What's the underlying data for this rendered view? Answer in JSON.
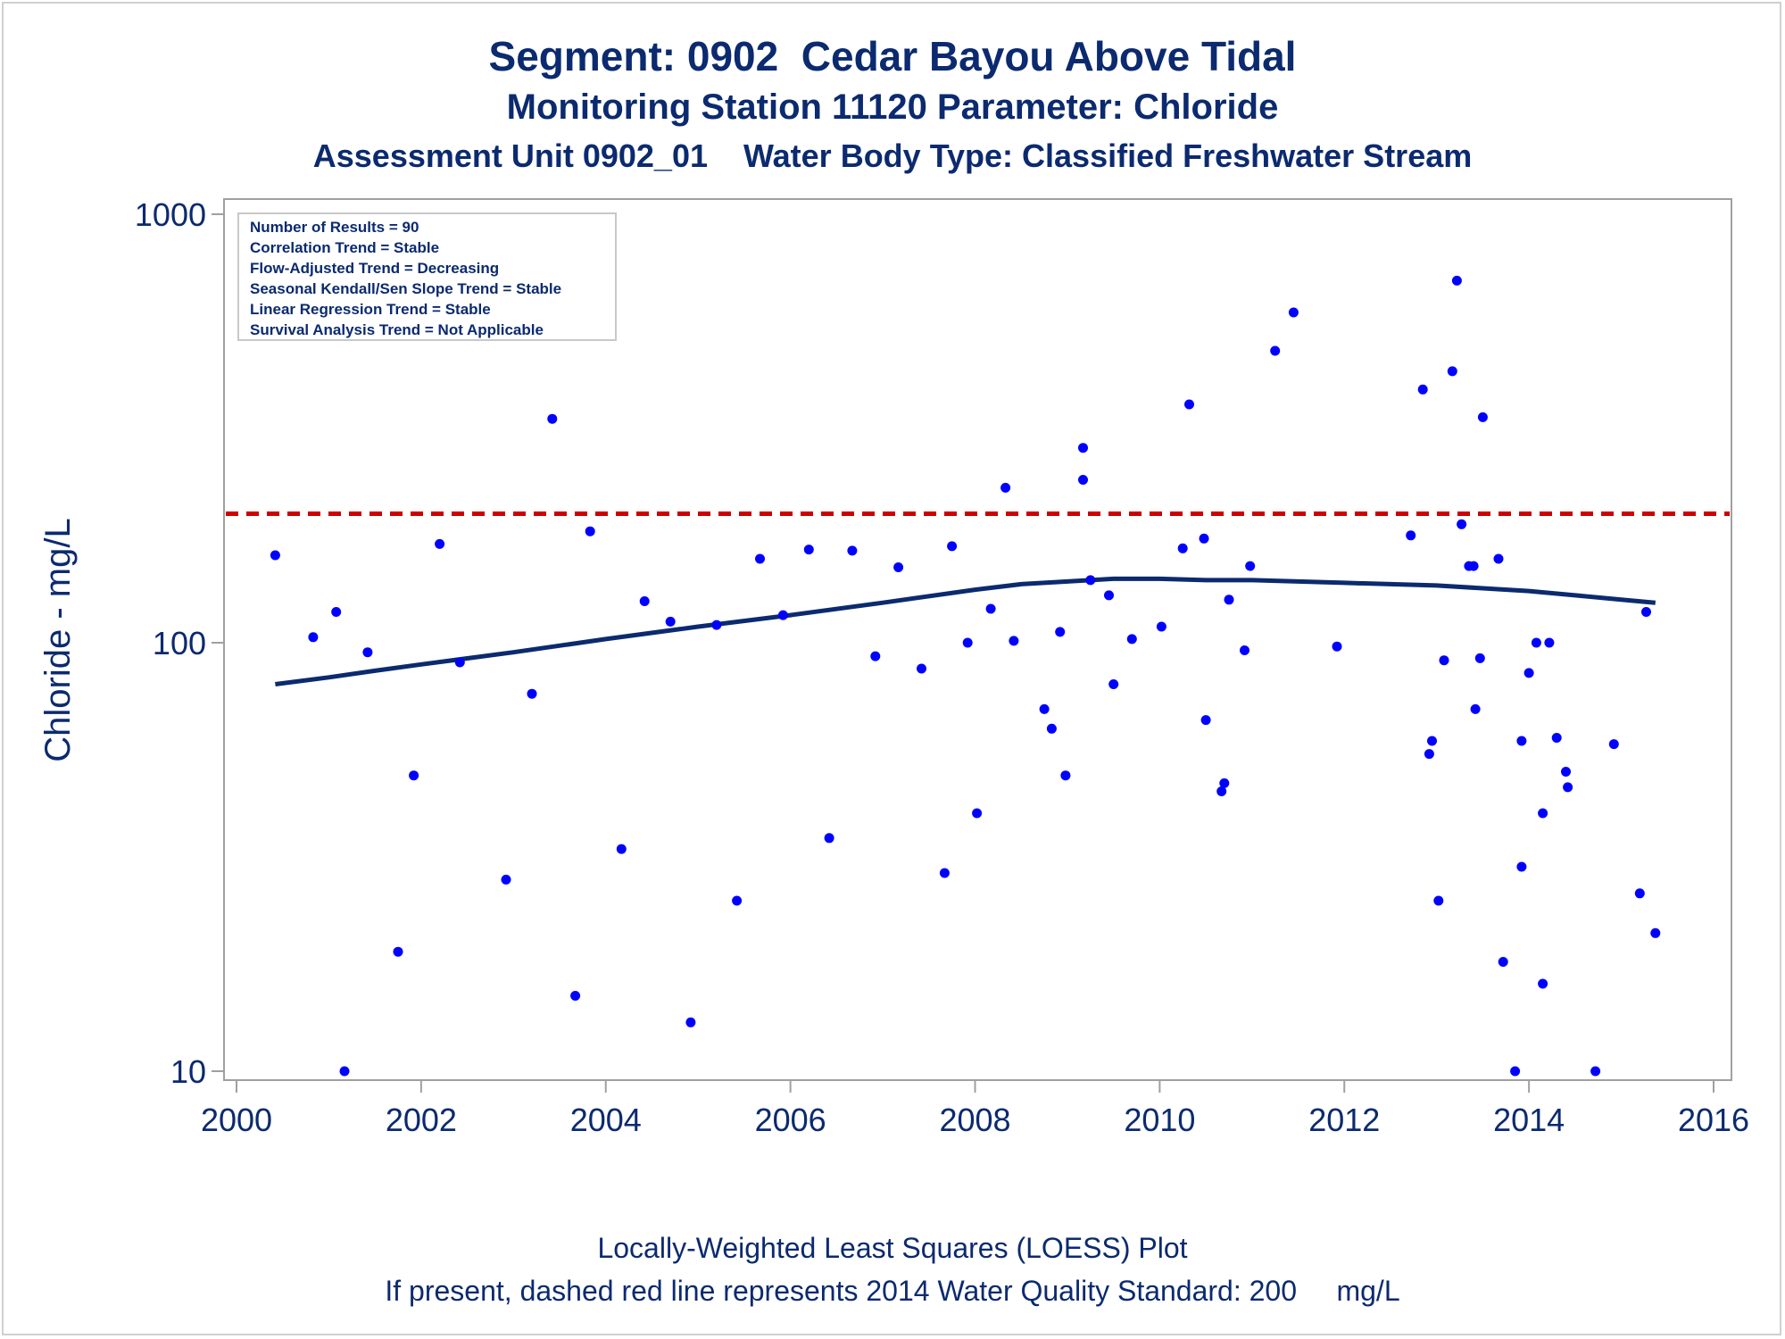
{
  "titles": {
    "line1": "Segment: 0902  Cedar Bayou Above Tidal",
    "line2": "Monitoring Station 11120 Parameter: Chloride",
    "line3": "Assessment Unit 0902_01    Water Body Type: Classified Freshwater Stream"
  },
  "footnotes": {
    "line1": "Locally-Weighted Least Squares (LOESS) Plot",
    "line2": "If present, dashed red line represents 2014 Water Quality Standard: 200     mg/L"
  },
  "stats": [
    "Number of Results = 90",
    "Correlation Trend = Stable",
    "Flow-Adjusted Trend = Decreasing",
    "Seasonal Kendall/Sen Slope Trend = Stable",
    "Linear Regression Trend = Stable",
    "Survival Analysis Trend = Not Applicable"
  ],
  "colors": {
    "points": "#0000ff",
    "loess": "#0b2a6f",
    "standard_line": "#cc0000",
    "axis_text": "#0b2a6f",
    "frame": "#a0a0a0"
  },
  "chart_data": {
    "type": "scatter",
    "ylabel": "Chloride - mg/L",
    "xlabel": "",
    "y_scale": "log",
    "xlim": [
      2000,
      2016
    ],
    "ylim": [
      10,
      1000
    ],
    "x_ticks": [
      2000,
      2002,
      2004,
      2006,
      2008,
      2010,
      2012,
      2014,
      2016
    ],
    "y_ticks": [
      10,
      100,
      1000
    ],
    "standard_line": {
      "value": 200,
      "style": "dashed"
    },
    "points": [
      [
        2000.42,
        160
      ],
      [
        2000.83,
        103
      ],
      [
        2001.08,
        118
      ],
      [
        2001.17,
        10
      ],
      [
        2001.42,
        95
      ],
      [
        2001.75,
        19
      ],
      [
        2001.92,
        49
      ],
      [
        2002.2,
        170
      ],
      [
        2002.42,
        90
      ],
      [
        2002.92,
        28
      ],
      [
        2003.2,
        76
      ],
      [
        2003.42,
        333
      ],
      [
        2003.67,
        15
      ],
      [
        2003.83,
        182
      ],
      [
        2004.17,
        33
      ],
      [
        2004.42,
        125
      ],
      [
        2004.7,
        112
      ],
      [
        2004.92,
        13
      ],
      [
        2005.2,
        110
      ],
      [
        2005.42,
        25
      ],
      [
        2005.67,
        157
      ],
      [
        2005.92,
        116
      ],
      [
        2006.2,
        165
      ],
      [
        2006.42,
        35
      ],
      [
        2006.67,
        164
      ],
      [
        2006.92,
        93
      ],
      [
        2007.17,
        150
      ],
      [
        2007.42,
        87
      ],
      [
        2007.67,
        29
      ],
      [
        2007.75,
        168
      ],
      [
        2007.92,
        100
      ],
      [
        2008.02,
        40
      ],
      [
        2008.17,
        120
      ],
      [
        2008.33,
        230
      ],
      [
        2008.42,
        101
      ],
      [
        2008.75,
        70
      ],
      [
        2008.83,
        63
      ],
      [
        2008.92,
        106
      ],
      [
        2008.98,
        49
      ],
      [
        2009.17,
        240
      ],
      [
        2009.17,
        285
      ],
      [
        2009.25,
        140
      ],
      [
        2009.45,
        129
      ],
      [
        2009.5,
        80
      ],
      [
        2009.7,
        102
      ],
      [
        2010.02,
        109
      ],
      [
        2010.25,
        166
      ],
      [
        2010.32,
        360
      ],
      [
        2010.48,
        175
      ],
      [
        2010.5,
        66
      ],
      [
        2010.67,
        45
      ],
      [
        2010.7,
        47
      ],
      [
        2010.75,
        126
      ],
      [
        2010.92,
        96
      ],
      [
        2010.98,
        151
      ],
      [
        2011.25,
        480
      ],
      [
        2011.45,
        590
      ],
      [
        2011.92,
        98
      ],
      [
        2012.72,
        178
      ],
      [
        2012.85,
        390
      ],
      [
        2012.92,
        55
      ],
      [
        2012.95,
        59
      ],
      [
        2013.02,
        25
      ],
      [
        2013.08,
        91
      ],
      [
        2013.17,
        430
      ],
      [
        2013.22,
        700
      ],
      [
        2013.27,
        189
      ],
      [
        2013.35,
        151
      ],
      [
        2013.4,
        151
      ],
      [
        2013.42,
        70
      ],
      [
        2013.47,
        92
      ],
      [
        2013.5,
        336
      ],
      [
        2013.67,
        157
      ],
      [
        2013.72,
        18
      ],
      [
        2013.85,
        10
      ],
      [
        2013.92,
        30
      ],
      [
        2013.92,
        59
      ],
      [
        2014.0,
        85
      ],
      [
        2014.08,
        100
      ],
      [
        2014.15,
        16
      ],
      [
        2014.15,
        40
      ],
      [
        2014.22,
        100
      ],
      [
        2014.3,
        60
      ],
      [
        2014.4,
        50
      ],
      [
        2014.42,
        46
      ],
      [
        2014.72,
        10
      ],
      [
        2014.92,
        58
      ],
      [
        2015.2,
        26
      ],
      [
        2015.27,
        118
      ],
      [
        2015.37,
        21
      ]
    ],
    "loess": [
      [
        2000.42,
        80
      ],
      [
        2001.0,
        83
      ],
      [
        2001.5,
        86
      ],
      [
        2002.0,
        89
      ],
      [
        2003.0,
        95
      ],
      [
        2004.0,
        102
      ],
      [
        2005.0,
        109
      ],
      [
        2006.0,
        116
      ],
      [
        2007.0,
        124
      ],
      [
        2008.0,
        133
      ],
      [
        2008.5,
        137
      ],
      [
        2009.0,
        139
      ],
      [
        2009.5,
        141
      ],
      [
        2010.0,
        141
      ],
      [
        2010.5,
        140
      ],
      [
        2011.0,
        140
      ],
      [
        2011.5,
        139
      ],
      [
        2012.0,
        138
      ],
      [
        2012.5,
        137
      ],
      [
        2013.0,
        136
      ],
      [
        2013.5,
        134
      ],
      [
        2014.0,
        132
      ],
      [
        2014.5,
        129
      ],
      [
        2015.0,
        126
      ],
      [
        2015.37,
        124
      ]
    ]
  }
}
